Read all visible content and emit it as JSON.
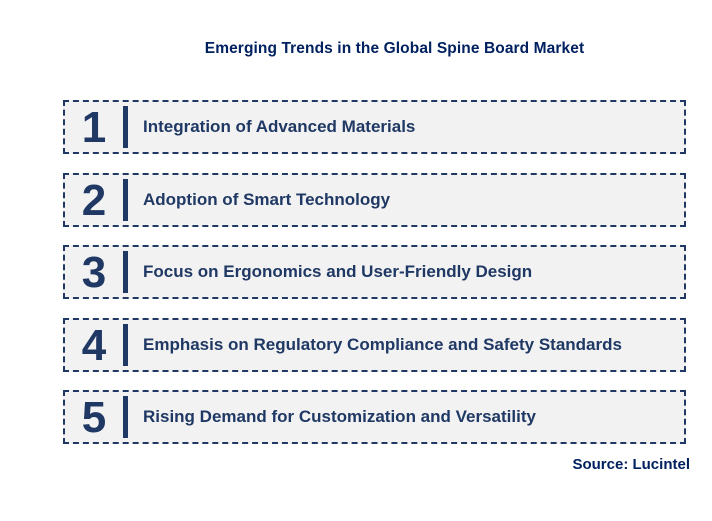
{
  "title": "Emerging Trends in the Global Spine Board Market",
  "source": "Source: Lucintel",
  "colors": {
    "navy_text": "#1f3864",
    "title_navy": "#002060",
    "row_background": "#f2f2f2",
    "dashed_border": "#1f3864",
    "page_background": "#ffffff"
  },
  "trends": [
    {
      "number": "1",
      "label": "Integration of Advanced Materials"
    },
    {
      "number": "2",
      "label": "Adoption of Smart Technology"
    },
    {
      "number": "3",
      "label": "Focus on Ergonomics and User-Friendly Design"
    },
    {
      "number": "4",
      "label": "Emphasis on Regulatory Compliance and Safety Standards"
    },
    {
      "number": "5",
      "label": "Rising Demand for Customization and Versatility"
    }
  ]
}
